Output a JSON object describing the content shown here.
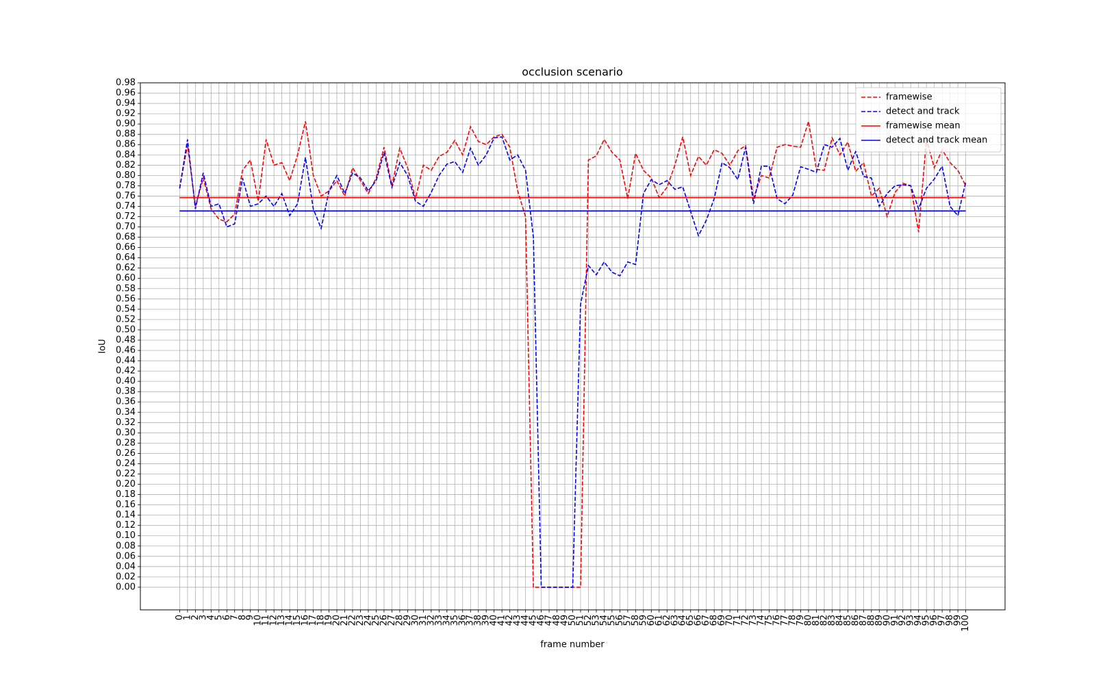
{
  "chart_data": {
    "type": "line",
    "title": "occlusion scenario",
    "xlabel": "frame number",
    "ylabel": "IoU",
    "x": [
      0,
      1,
      2,
      3,
      4,
      5,
      6,
      7,
      8,
      9,
      10,
      11,
      12,
      13,
      14,
      15,
      16,
      17,
      18,
      19,
      20,
      21,
      22,
      23,
      24,
      25,
      26,
      27,
      28,
      29,
      30,
      31,
      32,
      33,
      34,
      35,
      36,
      37,
      38,
      39,
      40,
      41,
      42,
      43,
      44,
      45,
      46,
      47,
      48,
      49,
      50,
      51,
      52,
      53,
      54,
      55,
      56,
      57,
      58,
      59,
      60,
      61,
      62,
      63,
      64,
      65,
      66,
      67,
      68,
      69,
      70,
      71,
      72,
      73,
      74,
      75,
      76,
      77,
      78,
      79,
      80,
      81,
      82,
      83,
      84,
      85,
      86,
      87,
      88,
      89,
      90,
      91,
      92,
      93,
      94,
      95,
      96,
      97,
      98,
      99,
      100
    ],
    "series": [
      {
        "name": "framewise",
        "color": "#ff0000",
        "dashed": true,
        "values": [
          0.775,
          0.86,
          0.74,
          0.795,
          0.735,
          0.715,
          0.71,
          0.725,
          0.81,
          0.83,
          0.75,
          0.87,
          0.82,
          0.825,
          0.79,
          0.84,
          0.905,
          0.8,
          0.76,
          0.77,
          0.79,
          0.76,
          0.815,
          0.79,
          0.765,
          0.795,
          0.855,
          0.78,
          0.853,
          0.815,
          0.755,
          0.82,
          0.81,
          0.837,
          0.845,
          0.868,
          0.84,
          0.895,
          0.866,
          0.86,
          0.875,
          0.88,
          0.855,
          0.77,
          0.72,
          0,
          0,
          0,
          0,
          0,
          0,
          0,
          0.83,
          0.838,
          0.87,
          0.845,
          0.83,
          0.755,
          0.843,
          0.81,
          0.795,
          0.757,
          0.777,
          0.82,
          0.875,
          0.8,
          0.837,
          0.82,
          0.85,
          0.843,
          0.82,
          0.848,
          0.858,
          0.755,
          0.8,
          0.795,
          0.855,
          0.86,
          0.857,
          0.855,
          0.905,
          0.812,
          0.81,
          0.873,
          0.84,
          0.865,
          0.808,
          0.825,
          0.76,
          0.775,
          0.72,
          0.767,
          0.785,
          0.78,
          0.69,
          0.87,
          0.815,
          0.85,
          0.825,
          0.81,
          0.78
        ]
      },
      {
        "name": "detect and track",
        "color": "#0000ff",
        "dashed": true,
        "values": [
          0.775,
          0.87,
          0.735,
          0.805,
          0.74,
          0.745,
          0.7,
          0.706,
          0.795,
          0.74,
          0.745,
          0.76,
          0.74,
          0.765,
          0.722,
          0.745,
          0.835,
          0.735,
          0.697,
          0.77,
          0.8,
          0.765,
          0.805,
          0.795,
          0.77,
          0.79,
          0.845,
          0.777,
          0.825,
          0.8,
          0.75,
          0.74,
          0.767,
          0.8,
          0.822,
          0.827,
          0.806,
          0.853,
          0.82,
          0.84,
          0.873,
          0.875,
          0.83,
          0.84,
          0.81,
          0.68,
          0,
          0,
          0,
          0,
          0,
          0.55,
          0.625,
          0.607,
          0.632,
          0.612,
          0.605,
          0.632,
          0.627,
          0.765,
          0.792,
          0.782,
          0.79,
          0.773,
          0.778,
          0.73,
          0.683,
          0.713,
          0.755,
          0.825,
          0.815,
          0.792,
          0.855,
          0.745,
          0.818,
          0.818,
          0.755,
          0.745,
          0.762,
          0.817,
          0.812,
          0.806,
          0.86,
          0.855,
          0.872,
          0.81,
          0.847,
          0.798,
          0.795,
          0.74,
          0.765,
          0.78,
          0.782,
          0.78,
          0.735,
          0.775,
          0.793,
          0.818,
          0.74,
          0.722,
          0.787
        ]
      },
      {
        "name": "framewise mean",
        "color": "#ff0000",
        "dashed": false,
        "value": 0.757
      },
      {
        "name": "detect and track mean",
        "color": "#0000ff",
        "dashed": false,
        "value": 0.731
      }
    ],
    "xlim": [
      -5,
      105
    ],
    "ylim": [
      -0.044,
      0.98
    ],
    "xticks": [
      0,
      1,
      2,
      3,
      4,
      5,
      6,
      7,
      8,
      9,
      10,
      11,
      12,
      13,
      14,
      15,
      16,
      17,
      18,
      19,
      20,
      21,
      22,
      23,
      24,
      25,
      26,
      27,
      28,
      29,
      30,
      31,
      32,
      33,
      34,
      35,
      36,
      37,
      38,
      39,
      40,
      41,
      42,
      43,
      44,
      45,
      46,
      47,
      48,
      49,
      50,
      51,
      52,
      53,
      54,
      55,
      56,
      57,
      58,
      59,
      60,
      61,
      62,
      63,
      64,
      65,
      66,
      67,
      68,
      69,
      70,
      71,
      72,
      73,
      74,
      75,
      76,
      77,
      78,
      79,
      80,
      81,
      82,
      83,
      84,
      85,
      86,
      87,
      88,
      89,
      90,
      91,
      92,
      93,
      94,
      95,
      96,
      97,
      98,
      99,
      100
    ],
    "yticks": [
      {
        "value": 0,
        "label": "0.00"
      },
      {
        "value": 0.02,
        "label": "0.02"
      },
      {
        "value": 0.04,
        "label": "0.04"
      },
      {
        "value": 0.06,
        "label": "0.06"
      },
      {
        "value": 0.08,
        "label": "0.08"
      },
      {
        "value": 0.1,
        "label": "0.10"
      },
      {
        "value": 0.12,
        "label": "0.12"
      },
      {
        "value": 0.14,
        "label": "0.14"
      },
      {
        "value": 0.16,
        "label": "0.16"
      },
      {
        "value": 0.18,
        "label": "0.18"
      },
      {
        "value": 0.2,
        "label": "0.20"
      },
      {
        "value": 0.22,
        "label": "0.22"
      },
      {
        "value": 0.24,
        "label": "0.24"
      },
      {
        "value": 0.26,
        "label": "0.26"
      },
      {
        "value": 0.28,
        "label": "0.28"
      },
      {
        "value": 0.3,
        "label": "0.30"
      },
      {
        "value": 0.32,
        "label": "0.32"
      },
      {
        "value": 0.34,
        "label": "0.34"
      },
      {
        "value": 0.36,
        "label": "0.36"
      },
      {
        "value": 0.38,
        "label": "0.38"
      },
      {
        "value": 0.4,
        "label": "0.40"
      },
      {
        "value": 0.42,
        "label": "0.42"
      },
      {
        "value": 0.44,
        "label": "0.44"
      },
      {
        "value": 0.46,
        "label": "0.46"
      },
      {
        "value": 0.48,
        "label": "0.48"
      },
      {
        "value": 0.5,
        "label": "0.50"
      },
      {
        "value": 0.52,
        "label": "0.52"
      },
      {
        "value": 0.54,
        "label": "0.54"
      },
      {
        "value": 0.56,
        "label": "0.56"
      },
      {
        "value": 0.58,
        "label": "0.58"
      },
      {
        "value": 0.6,
        "label": "0.60"
      },
      {
        "value": 0.62,
        "label": "0.62"
      },
      {
        "value": 0.64,
        "label": "0.64"
      },
      {
        "value": 0.66,
        "label": "0.66"
      },
      {
        "value": 0.68,
        "label": "0.68"
      },
      {
        "value": 0.7,
        "label": "0.70"
      },
      {
        "value": 0.72,
        "label": "0.72"
      },
      {
        "value": 0.74,
        "label": "0.74"
      },
      {
        "value": 0.76,
        "label": "0.76"
      },
      {
        "value": 0.78,
        "label": "0.78"
      },
      {
        "value": 0.8,
        "label": "0.80"
      },
      {
        "value": 0.82,
        "label": "0.82"
      },
      {
        "value": 0.84,
        "label": "0.84"
      },
      {
        "value": 0.86,
        "label": "0.86"
      },
      {
        "value": 0.88,
        "label": "0.88"
      },
      {
        "value": 0.9,
        "label": "0.90"
      },
      {
        "value": 0.92,
        "label": "0.92"
      },
      {
        "value": 0.94,
        "label": "0.94"
      },
      {
        "value": 0.96,
        "label": "0.96"
      },
      {
        "value": 0.98,
        "label": "0.98"
      }
    ],
    "grid": true,
    "legend": "upper right"
  }
}
